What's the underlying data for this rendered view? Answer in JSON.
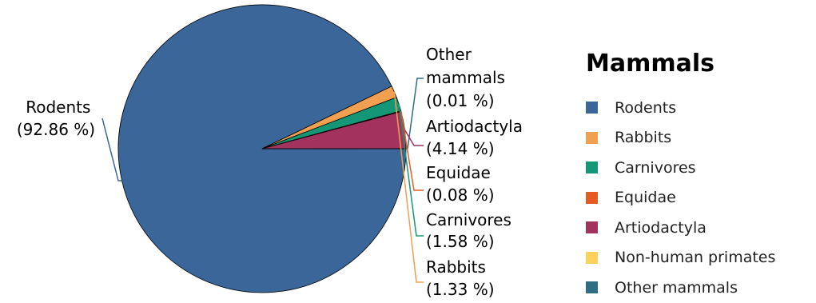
{
  "chart_data": {
    "type": "pie",
    "legend_title": "Mammals",
    "legend_position": "right",
    "slices": [
      {
        "name": "Rodents",
        "value": 92.86,
        "label": "(92.86 %)",
        "color": "#3a6699"
      },
      {
        "name": "Rabbits",
        "value": 1.33,
        "label": "(1.33 %)",
        "color": "#f0a050"
      },
      {
        "name": "Carnivores",
        "value": 1.58,
        "label": "(1.58 %)",
        "color": "#149777"
      },
      {
        "name": "Equidae",
        "value": 0.08,
        "label": "(0.08 %)",
        "color": "#e45c24"
      },
      {
        "name": "Artiodactyla",
        "value": 4.14,
        "label": "(4.14 %)",
        "color": "#a2325e"
      },
      {
        "name": "Non-human primates",
        "value": 0,
        "label": "",
        "color": "#fcd25a"
      },
      {
        "name": "Other mammals",
        "value": 0.01,
        "label": "(0.01 %)",
        "color": "#2e6f86"
      }
    ]
  },
  "slice_labels": {
    "rodents": [
      "Rodents",
      "(92.86 %)"
    ],
    "other": [
      "Other",
      "mammals",
      "(0.01 %)"
    ],
    "artiodactyla": [
      "Artiodactyla",
      "(4.14 %)"
    ],
    "equidae": [
      "Equidae",
      "(0.08 %)"
    ],
    "carnivores": [
      "Carnivores",
      "(1.58 %)"
    ],
    "rabbits": [
      "Rabbits",
      "(1.33 %)"
    ]
  },
  "legend": {
    "title": "Mammals",
    "items": [
      "Rodents",
      "Rabbits",
      "Carnivores",
      "Equidae",
      "Artiodactyla",
      "Non-human primates",
      "Other mammals"
    ]
  }
}
